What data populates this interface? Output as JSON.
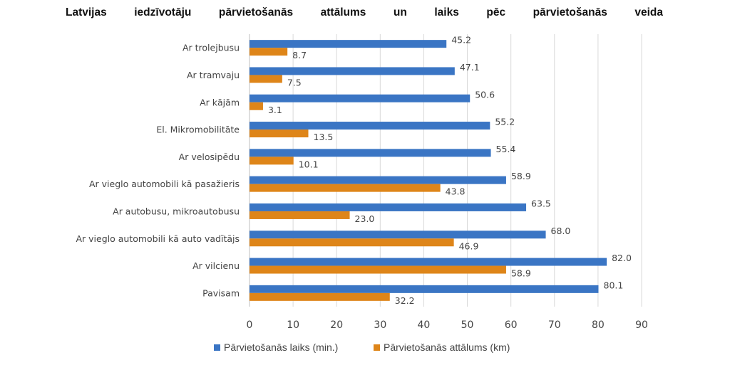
{
  "chart_data": {
    "type": "bar",
    "orientation": "horizontal",
    "title": "Latvijas iedzīvotāju pārvietošanās attālums un laiks pēc pārvietošanās veida",
    "categories": [
      "Ar trolejbusu",
      "Ar tramvaju",
      "Ar kājām",
      "El. Mikromobilitāte",
      "Ar velosipēdu",
      "Ar vieglo automobili kā pasažieris",
      "Ar autobusu, mikroautobusu",
      "Ar vieglo automobili  kā auto vadītājs",
      "Ar vilcienu",
      "Pavisam"
    ],
    "series": [
      {
        "name": "Pārvietošanās laiks (min.)",
        "color": "#3a75c4",
        "values": [
          45.2,
          47.1,
          50.6,
          55.2,
          55.4,
          58.9,
          63.5,
          68.0,
          82.0,
          80.1
        ],
        "labels": [
          "45.2",
          "47.1",
          "50.6",
          "55.2",
          "55.4",
          "58.9",
          "63.5",
          "68.0",
          "82.0",
          "80.1"
        ]
      },
      {
        "name": "Pārvietošanās attālums (km)",
        "color": "#de8519",
        "values": [
          8.7,
          7.5,
          3.1,
          13.5,
          10.1,
          43.8,
          23.0,
          46.9,
          58.9,
          32.2
        ],
        "labels": [
          "8.7",
          "7.5",
          "3.1",
          "13.5",
          "10.1",
          "43.8",
          "23.0",
          "46.9",
          "58.9",
          "32.2"
        ]
      }
    ],
    "xlim": [
      0,
      90
    ],
    "xticks": [
      0,
      10,
      20,
      30,
      40,
      50,
      60,
      70,
      80,
      90
    ],
    "xtick_labels": [
      "0",
      "10",
      "20",
      "30",
      "40",
      "50",
      "60",
      "70",
      "80",
      "90"
    ],
    "grid": "vertical",
    "legend_position": "bottom"
  }
}
